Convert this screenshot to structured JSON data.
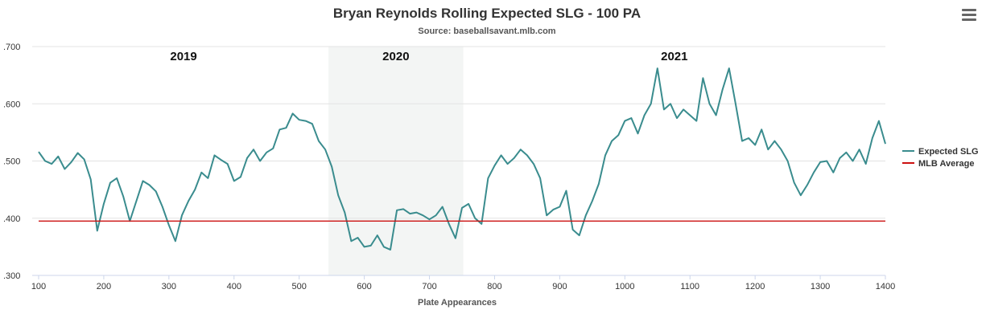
{
  "chart_data": {
    "type": "line",
    "title": "Bryan Reynolds Rolling Expected SLG - 100 PA",
    "subtitle": "Source: baseballsavant.mlb.com",
    "xlabel": "Plate Appearances",
    "ylabel": "",
    "xlim": [
      100,
      1400
    ],
    "ylim": [
      0.3,
      0.7
    ],
    "x_ticks": [
      "100",
      "200",
      "300",
      "400",
      "500",
      "600",
      "700",
      "800",
      "900",
      "1000",
      "1100",
      "1200",
      "1300",
      "1400"
    ],
    "y_ticks": [
      ".300",
      ".400",
      ".500",
      ".600",
      ".700"
    ],
    "grid": true,
    "legend_position": "right",
    "season_bands": [
      {
        "label": "2019",
        "start": 100,
        "end": 545,
        "shaded": false
      },
      {
        "label": "2020",
        "start": 545,
        "end": 752,
        "shaded": true
      },
      {
        "label": "2021",
        "start": 752,
        "end": 1400,
        "shaded": false
      }
    ],
    "series": [
      {
        "name": "Expected SLG",
        "color": "#3a8c8e",
        "points": [
          [
            100,
            0.516
          ],
          [
            110,
            0.5
          ],
          [
            120,
            0.495
          ],
          [
            130,
            0.508
          ],
          [
            140,
            0.486
          ],
          [
            150,
            0.498
          ],
          [
            160,
            0.514
          ],
          [
            170,
            0.503
          ],
          [
            180,
            0.468
          ],
          [
            190,
            0.378
          ],
          [
            200,
            0.425
          ],
          [
            210,
            0.462
          ],
          [
            220,
            0.47
          ],
          [
            230,
            0.438
          ],
          [
            240,
            0.395
          ],
          [
            250,
            0.43
          ],
          [
            260,
            0.465
          ],
          [
            270,
            0.458
          ],
          [
            280,
            0.447
          ],
          [
            290,
            0.42
          ],
          [
            300,
            0.388
          ],
          [
            310,
            0.36
          ],
          [
            320,
            0.405
          ],
          [
            330,
            0.43
          ],
          [
            340,
            0.45
          ],
          [
            350,
            0.48
          ],
          [
            360,
            0.47
          ],
          [
            370,
            0.51
          ],
          [
            380,
            0.502
          ],
          [
            390,
            0.495
          ],
          [
            400,
            0.465
          ],
          [
            410,
            0.472
          ],
          [
            420,
            0.505
          ],
          [
            430,
            0.52
          ],
          [
            440,
            0.5
          ],
          [
            450,
            0.515
          ],
          [
            460,
            0.522
          ],
          [
            470,
            0.555
          ],
          [
            480,
            0.558
          ],
          [
            490,
            0.583
          ],
          [
            500,
            0.572
          ],
          [
            510,
            0.57
          ],
          [
            520,
            0.565
          ],
          [
            530,
            0.535
          ],
          [
            540,
            0.52
          ],
          [
            550,
            0.49
          ],
          [
            560,
            0.44
          ],
          [
            570,
            0.41
          ],
          [
            580,
            0.36
          ],
          [
            590,
            0.366
          ],
          [
            600,
            0.35
          ],
          [
            610,
            0.352
          ],
          [
            620,
            0.37
          ],
          [
            630,
            0.35
          ],
          [
            640,
            0.345
          ],
          [
            650,
            0.414
          ],
          [
            660,
            0.416
          ],
          [
            670,
            0.408
          ],
          [
            680,
            0.41
          ],
          [
            690,
            0.405
          ],
          [
            700,
            0.398
          ],
          [
            710,
            0.405
          ],
          [
            720,
            0.42
          ],
          [
            730,
            0.39
          ],
          [
            740,
            0.365
          ],
          [
            750,
            0.418
          ],
          [
            760,
            0.425
          ],
          [
            770,
            0.4
          ],
          [
            780,
            0.39
          ],
          [
            790,
            0.47
          ],
          [
            800,
            0.492
          ],
          [
            810,
            0.51
          ],
          [
            820,
            0.495
          ],
          [
            830,
            0.505
          ],
          [
            840,
            0.52
          ],
          [
            850,
            0.51
          ],
          [
            860,
            0.495
          ],
          [
            870,
            0.47
          ],
          [
            880,
            0.405
          ],
          [
            890,
            0.415
          ],
          [
            900,
            0.42
          ],
          [
            910,
            0.448
          ],
          [
            920,
            0.38
          ],
          [
            930,
            0.37
          ],
          [
            940,
            0.405
          ],
          [
            950,
            0.43
          ],
          [
            960,
            0.46
          ],
          [
            970,
            0.51
          ],
          [
            980,
            0.535
          ],
          [
            990,
            0.545
          ],
          [
            1000,
            0.57
          ],
          [
            1010,
            0.575
          ],
          [
            1020,
            0.548
          ],
          [
            1030,
            0.58
          ],
          [
            1040,
            0.6
          ],
          [
            1050,
            0.662
          ],
          [
            1060,
            0.59
          ],
          [
            1070,
            0.6
          ],
          [
            1080,
            0.575
          ],
          [
            1090,
            0.59
          ],
          [
            1100,
            0.58
          ],
          [
            1110,
            0.57
          ],
          [
            1120,
            0.645
          ],
          [
            1130,
            0.6
          ],
          [
            1140,
            0.58
          ],
          [
            1150,
            0.625
          ],
          [
            1160,
            0.662
          ],
          [
            1170,
            0.6
          ],
          [
            1180,
            0.535
          ],
          [
            1190,
            0.54
          ],
          [
            1200,
            0.528
          ],
          [
            1210,
            0.555
          ],
          [
            1220,
            0.52
          ],
          [
            1230,
            0.535
          ],
          [
            1240,
            0.52
          ],
          [
            1250,
            0.5
          ],
          [
            1260,
            0.462
          ],
          [
            1270,
            0.44
          ],
          [
            1280,
            0.458
          ],
          [
            1290,
            0.48
          ],
          [
            1300,
            0.498
          ],
          [
            1310,
            0.5
          ],
          [
            1320,
            0.48
          ],
          [
            1330,
            0.505
          ],
          [
            1340,
            0.515
          ],
          [
            1350,
            0.5
          ],
          [
            1360,
            0.52
          ],
          [
            1370,
            0.495
          ],
          [
            1380,
            0.54
          ],
          [
            1390,
            0.57
          ],
          [
            1400,
            0.53
          ]
        ]
      },
      {
        "name": "MLB Average",
        "color": "#cc1111",
        "points": [
          [
            100,
            0.395
          ],
          [
            1400,
            0.395
          ]
        ]
      }
    ]
  }
}
